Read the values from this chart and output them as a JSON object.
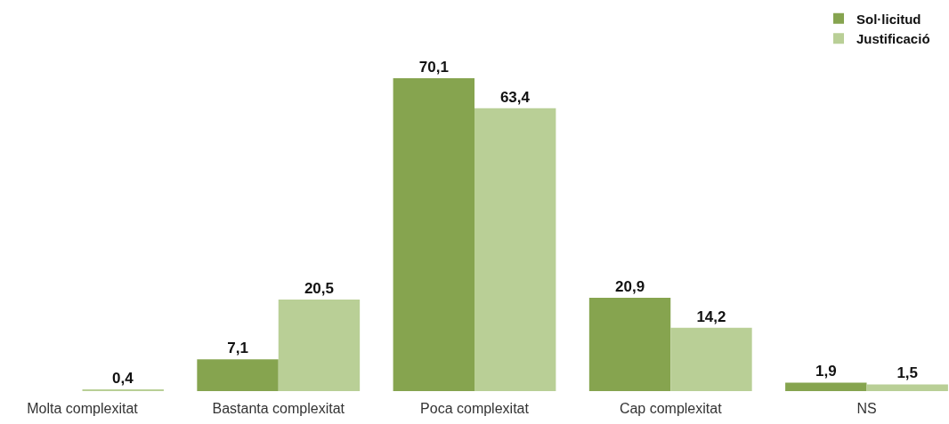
{
  "chart_data": {
    "type": "bar",
    "categories": [
      "Molta complexitat",
      "Bastanta complexitat",
      "Poca complexitat",
      "Cap complexitat",
      "NS"
    ],
    "series": [
      {
        "name": "Sol·licitud",
        "color": "#86a44f",
        "values": [
          null,
          7.1,
          70.1,
          20.9,
          1.9
        ],
        "value_labels": [
          null,
          "7,1",
          "70,1",
          "20,9",
          "1,9"
        ]
      },
      {
        "name": "Justificació",
        "color": "#b9cf96",
        "values": [
          0.4,
          20.5,
          63.4,
          14.2,
          1.5
        ],
        "value_labels": [
          "0,4",
          "20,5",
          "63,4",
          "14,2",
          "1,5"
        ]
      }
    ],
    "legend": "top right"
  }
}
